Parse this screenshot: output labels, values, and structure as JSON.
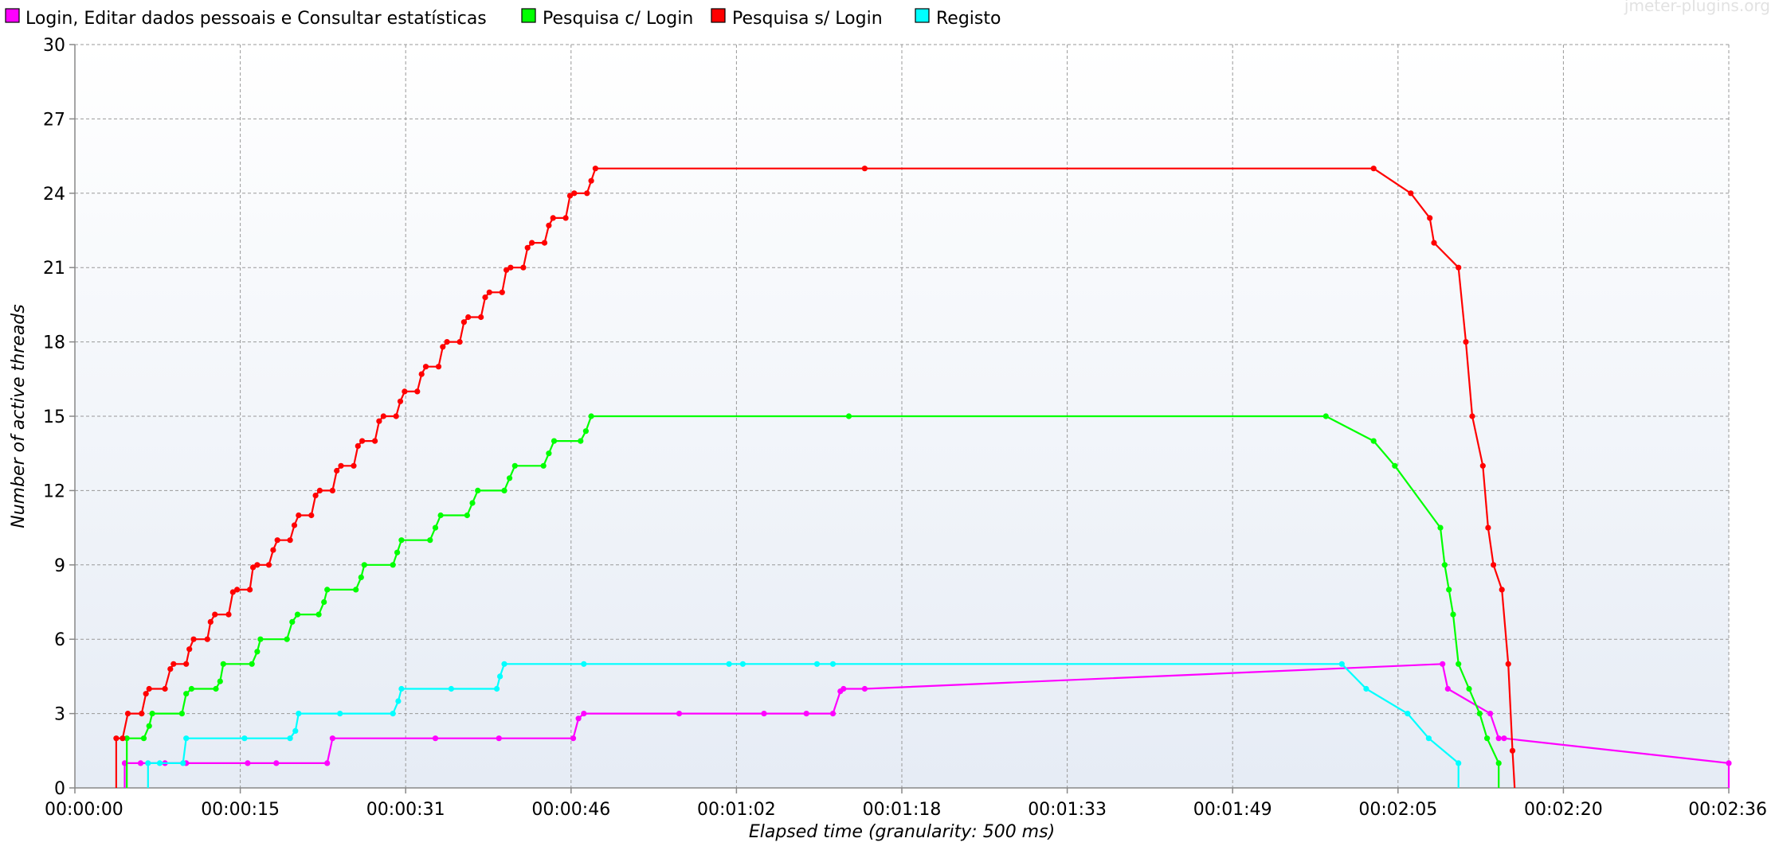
{
  "watermark": "jmeter-plugins.org",
  "chart_data": {
    "type": "line",
    "xlabel": "Elapsed time (granularity: 500 ms)",
    "ylabel": "Number of active threads",
    "xlim": [
      0,
      156
    ],
    "ylim": [
      0,
      30
    ],
    "x_ticks": [
      {
        "value": 0,
        "label": "00:00:00"
      },
      {
        "value": 15.6,
        "label": "00:00:15"
      },
      {
        "value": 31.2,
        "label": "00:00:31"
      },
      {
        "value": 46.8,
        "label": "00:00:46"
      },
      {
        "value": 62.4,
        "label": "00:01:02"
      },
      {
        "value": 78.0,
        "label": "00:01:18"
      },
      {
        "value": 93.6,
        "label": "00:01:33"
      },
      {
        "value": 109.2,
        "label": "00:01:49"
      },
      {
        "value": 124.8,
        "label": "00:02:05"
      },
      {
        "value": 140.4,
        "label": "00:02:20"
      },
      {
        "value": 156.0,
        "label": "00:02:36"
      }
    ],
    "y_ticks": [
      {
        "value": 0,
        "label": "0"
      },
      {
        "value": 3,
        "label": "3"
      },
      {
        "value": 6,
        "label": "6"
      },
      {
        "value": 9,
        "label": "9"
      },
      {
        "value": 12,
        "label": "12"
      },
      {
        "value": 15,
        "label": "15"
      },
      {
        "value": 18,
        "label": "18"
      },
      {
        "value": 21,
        "label": "21"
      },
      {
        "value": 24,
        "label": "24"
      },
      {
        "value": 27,
        "label": "27"
      },
      {
        "value": 30,
        "label": "30"
      }
    ],
    "grid": true,
    "legend_position": "top",
    "series": [
      {
        "name": "Login, Editar dados pessoais e Consultar estatísticas",
        "color": "#ff00ff",
        "points": [
          [
            4.7,
            0
          ],
          [
            4.7,
            1
          ],
          [
            6.2,
            1
          ],
          [
            8.5,
            1
          ],
          [
            10.5,
            1
          ],
          [
            16.3,
            1
          ],
          [
            19.0,
            1
          ],
          [
            23.8,
            1
          ],
          [
            24.3,
            2
          ],
          [
            34.0,
            2
          ],
          [
            40.0,
            2
          ],
          [
            47.0,
            2
          ],
          [
            47.5,
            2.8
          ],
          [
            48.0,
            3
          ],
          [
            57.0,
            3
          ],
          [
            65.0,
            3
          ],
          [
            69.0,
            3
          ],
          [
            71.5,
            3
          ],
          [
            72.2,
            3.9
          ],
          [
            72.5,
            4
          ],
          [
            74.5,
            4
          ],
          [
            129.0,
            5
          ],
          [
            129.5,
            4
          ],
          [
            133.5,
            3
          ],
          [
            134.3,
            2
          ],
          [
            134.8,
            2
          ],
          [
            156.0,
            1
          ],
          [
            156.0,
            0
          ]
        ]
      },
      {
        "name": "Pesquisa c/ Login",
        "color": "#00ff00",
        "points": [
          [
            4.9,
            0
          ],
          [
            4.9,
            2
          ],
          [
            6.5,
            2
          ],
          [
            7.0,
            2.5
          ],
          [
            7.3,
            3
          ],
          [
            10.1,
            3
          ],
          [
            10.5,
            3.8
          ],
          [
            11.0,
            4
          ],
          [
            13.3,
            4
          ],
          [
            13.7,
            4.3
          ],
          [
            14.0,
            5
          ],
          [
            16.7,
            5
          ],
          [
            17.2,
            5.5
          ],
          [
            17.5,
            6
          ],
          [
            20.0,
            6
          ],
          [
            20.5,
            6.7
          ],
          [
            21.0,
            7
          ],
          [
            23.0,
            7
          ],
          [
            23.5,
            7.5
          ],
          [
            23.8,
            8
          ],
          [
            26.5,
            8
          ],
          [
            27.0,
            8.5
          ],
          [
            27.3,
            9
          ],
          [
            30.0,
            9
          ],
          [
            30.4,
            9.5
          ],
          [
            30.8,
            10
          ],
          [
            33.5,
            10
          ],
          [
            34.0,
            10.5
          ],
          [
            34.5,
            11
          ],
          [
            37.0,
            11
          ],
          [
            37.5,
            11.5
          ],
          [
            38.0,
            12
          ],
          [
            40.5,
            12
          ],
          [
            41.0,
            12.5
          ],
          [
            41.5,
            13
          ],
          [
            44.2,
            13
          ],
          [
            44.7,
            13.5
          ],
          [
            45.2,
            14
          ],
          [
            47.7,
            14
          ],
          [
            48.2,
            14.4
          ],
          [
            48.7,
            15
          ],
          [
            73.0,
            15
          ],
          [
            118.0,
            15
          ],
          [
            122.5,
            14
          ],
          [
            124.5,
            13
          ],
          [
            128.8,
            10.5
          ],
          [
            129.2,
            9
          ],
          [
            129.6,
            8
          ],
          [
            130.0,
            7
          ],
          [
            130.5,
            5
          ],
          [
            131.5,
            4
          ],
          [
            132.5,
            3
          ],
          [
            133.2,
            2
          ],
          [
            134.3,
            1
          ],
          [
            134.3,
            0
          ]
        ]
      },
      {
        "name": "Pesquisa s/ Login",
        "color": "#ff0000",
        "points": [
          [
            3.9,
            0
          ],
          [
            3.9,
            2
          ],
          [
            4.5,
            2
          ],
          [
            5.0,
            3
          ],
          [
            6.3,
            3
          ],
          [
            6.7,
            3.8
          ],
          [
            7.0,
            4
          ],
          [
            8.5,
            4
          ],
          [
            9.0,
            4.8
          ],
          [
            9.3,
            5
          ],
          [
            10.5,
            5
          ],
          [
            10.8,
            5.6
          ],
          [
            11.2,
            6
          ],
          [
            12.5,
            6
          ],
          [
            12.8,
            6.7
          ],
          [
            13.2,
            7
          ],
          [
            14.5,
            7
          ],
          [
            14.9,
            7.9
          ],
          [
            15.3,
            8
          ],
          [
            16.5,
            8
          ],
          [
            16.8,
            8.9
          ],
          [
            17.2,
            9
          ],
          [
            18.3,
            9
          ],
          [
            18.7,
            9.6
          ],
          [
            19.1,
            10
          ],
          [
            20.3,
            10
          ],
          [
            20.7,
            10.6
          ],
          [
            21.1,
            11
          ],
          [
            22.3,
            11
          ],
          [
            22.7,
            11.8
          ],
          [
            23.1,
            12
          ],
          [
            24.3,
            12
          ],
          [
            24.7,
            12.8
          ],
          [
            25.1,
            13
          ],
          [
            26.3,
            13
          ],
          [
            26.7,
            13.8
          ],
          [
            27.1,
            14
          ],
          [
            28.3,
            14
          ],
          [
            28.7,
            14.8
          ],
          [
            29.1,
            15
          ],
          [
            30.3,
            15
          ],
          [
            30.7,
            15.6
          ],
          [
            31.1,
            16
          ],
          [
            32.3,
            16
          ],
          [
            32.7,
            16.7
          ],
          [
            33.1,
            17
          ],
          [
            34.3,
            17
          ],
          [
            34.7,
            17.8
          ],
          [
            35.1,
            18
          ],
          [
            36.3,
            18
          ],
          [
            36.7,
            18.8
          ],
          [
            37.1,
            19
          ],
          [
            38.3,
            19
          ],
          [
            38.7,
            19.8
          ],
          [
            39.1,
            20
          ],
          [
            40.3,
            20
          ],
          [
            40.7,
            20.9
          ],
          [
            41.1,
            21
          ],
          [
            42.3,
            21
          ],
          [
            42.7,
            21.8
          ],
          [
            43.1,
            22
          ],
          [
            44.3,
            22
          ],
          [
            44.7,
            22.7
          ],
          [
            45.1,
            23
          ],
          [
            46.3,
            23
          ],
          [
            46.7,
            23.9
          ],
          [
            47.1,
            24
          ],
          [
            48.3,
            24
          ],
          [
            48.7,
            24.5
          ],
          [
            49.1,
            25
          ],
          [
            74.5,
            25
          ],
          [
            122.5,
            25
          ],
          [
            126.0,
            24
          ],
          [
            127.8,
            23
          ],
          [
            128.2,
            22
          ],
          [
            130.5,
            21
          ],
          [
            131.2,
            18
          ],
          [
            131.8,
            15
          ],
          [
            132.8,
            13
          ],
          [
            133.3,
            10.5
          ],
          [
            133.8,
            9
          ],
          [
            134.6,
            8
          ],
          [
            135.2,
            5
          ],
          [
            135.6,
            1.5
          ],
          [
            135.8,
            0
          ]
        ]
      },
      {
        "name": "Registo",
        "color": "#00ffff",
        "points": [
          [
            6.9,
            0
          ],
          [
            6.9,
            1
          ],
          [
            8.0,
            1
          ],
          [
            10.2,
            1
          ],
          [
            10.5,
            2
          ],
          [
            16.0,
            2
          ],
          [
            20.3,
            2
          ],
          [
            20.8,
            2.3
          ],
          [
            21.1,
            3
          ],
          [
            25.0,
            3
          ],
          [
            30.0,
            3
          ],
          [
            30.5,
            3.5
          ],
          [
            30.8,
            4
          ],
          [
            35.5,
            4
          ],
          [
            39.8,
            4
          ],
          [
            40.1,
            4.5
          ],
          [
            40.5,
            5
          ],
          [
            48.0,
            5
          ],
          [
            61.7,
            5
          ],
          [
            63.0,
            5
          ],
          [
            70.0,
            5
          ],
          [
            71.5,
            5
          ],
          [
            119.5,
            5
          ],
          [
            121.8,
            4
          ],
          [
            125.7,
            3
          ],
          [
            127.7,
            2
          ],
          [
            130.5,
            1
          ],
          [
            130.5,
            0
          ]
        ]
      }
    ]
  }
}
